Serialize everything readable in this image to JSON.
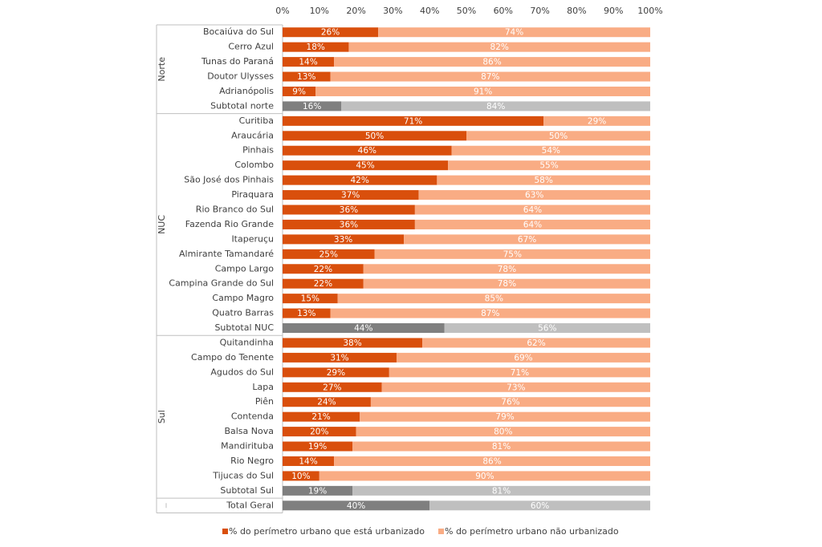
{
  "chart_data": {
    "type": "stacked-bar-horizontal",
    "xlim": [
      0,
      100
    ],
    "xticks": [
      {
        "value": 0,
        "label": "0%"
      },
      {
        "value": 10,
        "label": "10%"
      },
      {
        "value": 20,
        "label": "20%"
      },
      {
        "value": 30,
        "label": "30%"
      },
      {
        "value": 40,
        "label": "40%"
      },
      {
        "value": 50,
        "label": "50%"
      },
      {
        "value": 60,
        "label": "60%"
      },
      {
        "value": 70,
        "label": "70%"
      },
      {
        "value": 80,
        "label": "80%"
      },
      {
        "value": 90,
        "label": "90%"
      },
      {
        "value": 100,
        "label": "100%"
      }
    ],
    "category_groups": [
      {
        "name": "Norte",
        "categories": [
          "Bocaiúva do Sul",
          "Cerro Azul",
          "Tunas do Paraná",
          "Doutor Ulysses",
          "Adrianópolis",
          "Subtotal norte"
        ]
      },
      {
        "name": "NUC",
        "categories": [
          "Curitiba",
          "Araucária",
          "Pinhais",
          "Colombo",
          "São José dos Pinhais",
          "Piraquara",
          "Rio Branco do Sul",
          "Fazenda Rio Grande",
          "Itaperuçu",
          "Almirante Tamandaré",
          "Campo Largo",
          "Campina Grande do Sul",
          "Campo Magro",
          "Quatro Barras",
          "Subtotal NUC"
        ]
      },
      {
        "name": "Sul",
        "categories": [
          "Quitandinha",
          "Campo do Tenente",
          "Agudos do Sul",
          "Lapa",
          "Piên",
          "Contenda",
          "Balsa Nova",
          "Mandirituba",
          "Rio Negro",
          "Tijucas do Sul",
          "Subtotal Sul"
        ]
      },
      {
        "name": null,
        "categories": [
          "Total Geral"
        ]
      }
    ],
    "series": [
      {
        "name": "% do perímetro urbano que está urbanizado",
        "color": "#d94f0c",
        "values": [
          26,
          18,
          14,
          13,
          9,
          16,
          71,
          50,
          46,
          45,
          42,
          37,
          36,
          36,
          33,
          25,
          22,
          22,
          15,
          13,
          44,
          38,
          31,
          29,
          27,
          24,
          21,
          20,
          19,
          14,
          10,
          19,
          40
        ],
        "value_labels": [
          "26%",
          "18%",
          "14%",
          "13%",
          "9%",
          "16%",
          "71%",
          "50%",
          "46%",
          "45%",
          "42%",
          "37%",
          "36%",
          "36%",
          "33%",
          "25%",
          "22%",
          "22%",
          "15%",
          "13%",
          "44%",
          "38%",
          "31%",
          "29%",
          "27%",
          "24%",
          "21%",
          "20%",
          "19%",
          "14%",
          "10%",
          "19%",
          "40%"
        ],
        "colors": [
          "#d94f0c",
          "#d94f0c",
          "#d94f0c",
          "#d94f0c",
          "#d94f0c",
          "#7f7f7f",
          "#d94f0c",
          "#d94f0c",
          "#d94f0c",
          "#d94f0c",
          "#d94f0c",
          "#d94f0c",
          "#d94f0c",
          "#d94f0c",
          "#d94f0c",
          "#d94f0c",
          "#d94f0c",
          "#d94f0c",
          "#d94f0c",
          "#d94f0c",
          "#7f7f7f",
          "#d94f0c",
          "#d94f0c",
          "#d94f0c",
          "#d94f0c",
          "#d94f0c",
          "#d94f0c",
          "#d94f0c",
          "#d94f0c",
          "#d94f0c",
          "#d94f0c",
          "#7f7f7f",
          "#7f7f7f"
        ]
      },
      {
        "name": "% do perímetro urbano não urbanizado",
        "color": "#f9ac84",
        "values": [
          74,
          82,
          86,
          87,
          91,
          84,
          29,
          50,
          54,
          55,
          58,
          63,
          64,
          64,
          67,
          75,
          78,
          78,
          85,
          87,
          56,
          62,
          69,
          71,
          73,
          76,
          79,
          80,
          81,
          86,
          90,
          81,
          60
        ],
        "value_labels": [
          "74%",
          "82%",
          "86%",
          "87%",
          "91%",
          "84%",
          "29%",
          "50%",
          "54%",
          "55%",
          "58%",
          "63%",
          "64%",
          "64%",
          "67%",
          "75%",
          "78%",
          "78%",
          "85%",
          "87%",
          "56%",
          "62%",
          "69%",
          "71%",
          "73%",
          "76%",
          "79%",
          "80%",
          "81%",
          "86%",
          "90%",
          "81%",
          "60%"
        ],
        "colors": [
          "#f9ac84",
          "#f9ac84",
          "#f9ac84",
          "#f9ac84",
          "#f9ac84",
          "#bfbfbf",
          "#f9ac84",
          "#f9ac84",
          "#f9ac84",
          "#f9ac84",
          "#f9ac84",
          "#f9ac84",
          "#f9ac84",
          "#f9ac84",
          "#f9ac84",
          "#f9ac84",
          "#f9ac84",
          "#f9ac84",
          "#f9ac84",
          "#f9ac84",
          "#bfbfbf",
          "#f9ac84",
          "#f9ac84",
          "#f9ac84",
          "#f9ac84",
          "#f9ac84",
          "#f9ac84",
          "#f9ac84",
          "#f9ac84",
          "#f9ac84",
          "#f9ac84",
          "#bfbfbf",
          "#bfbfbf"
        ]
      }
    ],
    "legend": "bottom"
  }
}
